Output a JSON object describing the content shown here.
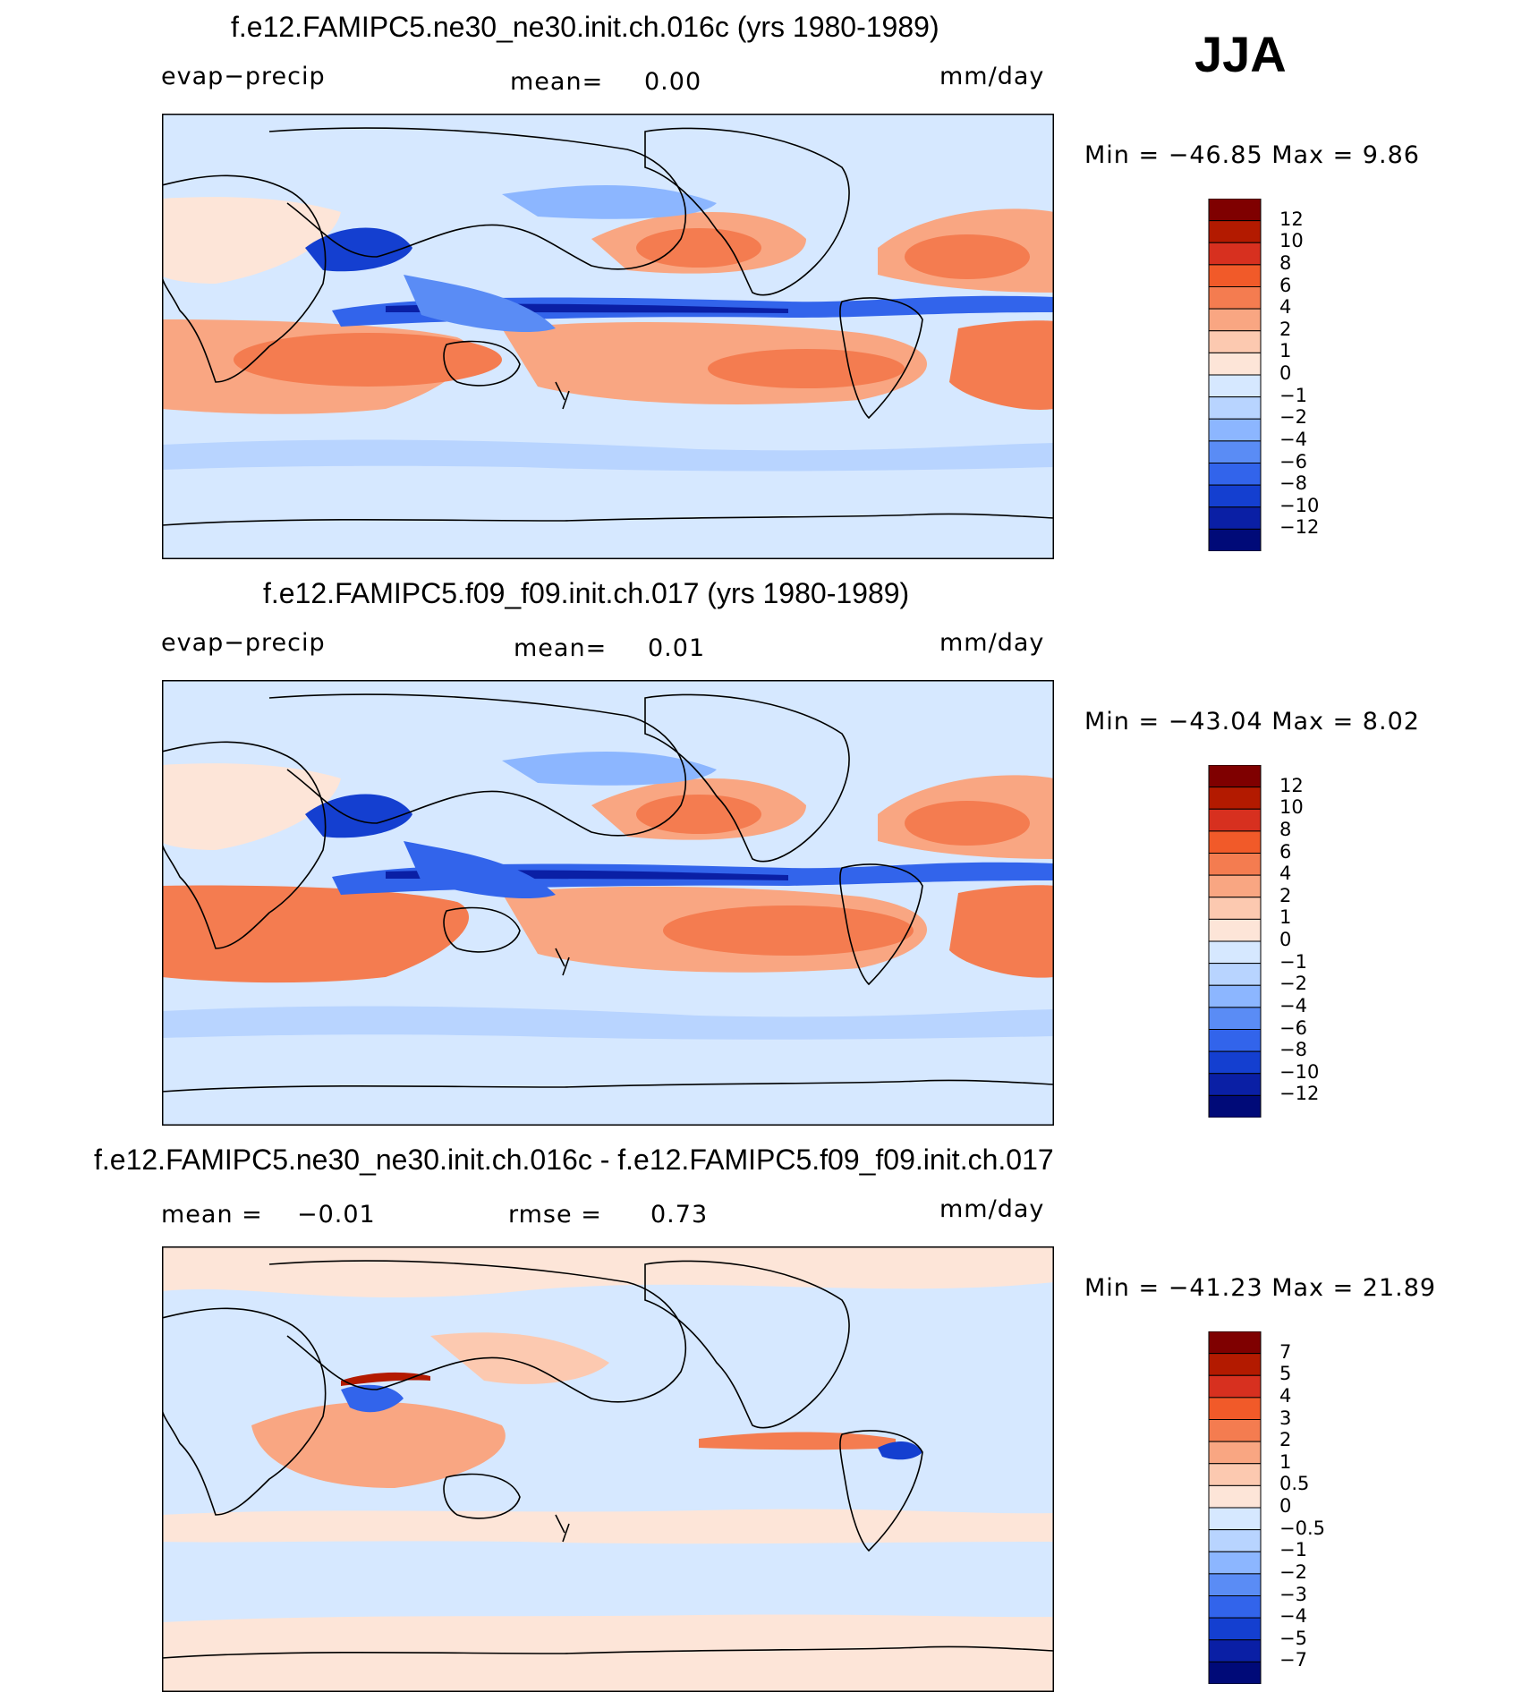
{
  "season": "JJA",
  "panels": [
    {
      "title": "f.e12.FAMIPC5.ne30_ne30.init.ch.016c (yrs 1980-1989)",
      "left_label": "evap−precip",
      "mean_text": "mean=",
      "mean_value": "0.00",
      "units": "mm/day",
      "min_text": "Min  =  −46.85  Max  =     9.86",
      "colorbar": {
        "levels": [
          "12",
          "10",
          "8",
          "6",
          "4",
          "2",
          "1",
          "0",
          "−1",
          "−2",
          "−4",
          "−6",
          "−8",
          "−10",
          "−12"
        ],
        "colors": [
          "#7f0000",
          "#b31a00",
          "#d7301f",
          "#f15a29",
          "#f47c50",
          "#f9a682",
          "#fcc9b0",
          "#fde5d8",
          "#d6e8ff",
          "#b8d4ff",
          "#8cb6ff",
          "#5a8cf5",
          "#3264eb",
          "#143fd0",
          "#0a1fa5",
          "#000a78"
        ]
      }
    },
    {
      "title": "f.e12.FAMIPC5.f09_f09.init.ch.017 (yrs 1980-1989)",
      "left_label": "evap−precip",
      "mean_text": "mean=",
      "mean_value": "0.01",
      "units": "mm/day",
      "min_text": "Min  =  −43.04  Max  =     8.02",
      "colorbar": {
        "levels": [
          "12",
          "10",
          "8",
          "6",
          "4",
          "2",
          "1",
          "0",
          "−1",
          "−2",
          "−4",
          "−6",
          "−8",
          "−10",
          "−12"
        ],
        "colors": [
          "#7f0000",
          "#b31a00",
          "#d7301f",
          "#f15a29",
          "#f47c50",
          "#f9a682",
          "#fcc9b0",
          "#fde5d8",
          "#d6e8ff",
          "#b8d4ff",
          "#8cb6ff",
          "#5a8cf5",
          "#3264eb",
          "#143fd0",
          "#0a1fa5",
          "#000a78"
        ]
      }
    },
    {
      "title": "f.e12.FAMIPC5.ne30_ne30.init.ch.016c - f.e12.FAMIPC5.f09_f09.init.ch.017",
      "mean_text": "mean  =",
      "mean_value": "−0.01",
      "rmse_text": "rmse  =",
      "rmse_value": "0.73",
      "units": "mm/day",
      "min_text": "Min  =  −41.23  Max  =   21.89",
      "colorbar": {
        "levels": [
          "7",
          "5",
          "4",
          "3",
          "2",
          "1",
          "0.5",
          "0",
          "−0.5",
          "−1",
          "−2",
          "−3",
          "−4",
          "−5",
          "−7"
        ],
        "colors": [
          "#7f0000",
          "#b31a00",
          "#d7301f",
          "#f15a29",
          "#f47c50",
          "#f9a682",
          "#fcc9b0",
          "#fde5d8",
          "#d6e8ff",
          "#b8d4ff",
          "#8cb6ff",
          "#5a8cf5",
          "#3264eb",
          "#143fd0",
          "#0a1fa5",
          "#000a78"
        ]
      }
    }
  ],
  "chart_data": [
    {
      "type": "heatmap",
      "title": "f.e12.FAMIPC5.ne30_ne30.init.ch.016c (yrs 1980-1989)",
      "variable": "evap−precip",
      "units": "mm/day",
      "mean": 0.0,
      "min": -46.85,
      "max": 9.86,
      "contour_levels": [
        -12,
        -10,
        -8,
        -6,
        -4,
        -2,
        -1,
        0,
        1,
        2,
        4,
        6,
        8,
        10,
        12
      ]
    },
    {
      "type": "heatmap",
      "title": "f.e12.FAMIPC5.f09_f09.init.ch.017 (yrs 1980-1989)",
      "variable": "evap−precip",
      "units": "mm/day",
      "mean": 0.01,
      "min": -43.04,
      "max": 8.02,
      "contour_levels": [
        -12,
        -10,
        -8,
        -6,
        -4,
        -2,
        -1,
        0,
        1,
        2,
        4,
        6,
        8,
        10,
        12
      ]
    },
    {
      "type": "heatmap",
      "title": "f.e12.FAMIPC5.ne30_ne30.init.ch.016c - f.e12.FAMIPC5.f09_f09.init.ch.017",
      "units": "mm/day",
      "mean": -0.01,
      "rmse": 0.73,
      "min": -41.23,
      "max": 21.89,
      "contour_levels": [
        -7,
        -5,
        -4,
        -3,
        -2,
        -1,
        -0.5,
        0,
        0.5,
        1,
        2,
        3,
        4,
        5,
        7
      ]
    }
  ]
}
